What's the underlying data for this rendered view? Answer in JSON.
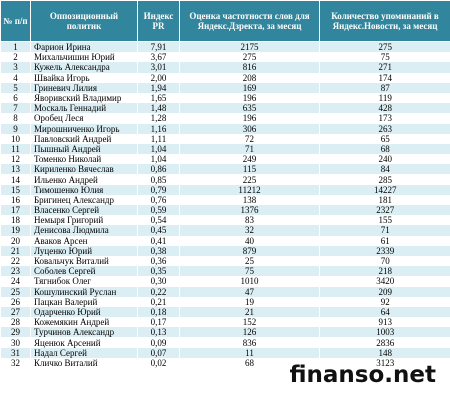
{
  "table": {
    "header": [
      "№ п/п",
      "Оппозиционный политик",
      "Индекс PR",
      "Оценка частотности слов для Яндекс.Дзректа, за месяц",
      "Количество упоминаний в Яндекс.Новости, за месяц"
    ],
    "rows": [
      [
        "1",
        "Фарион Ирина",
        "7,91",
        "2175",
        "275"
      ],
      [
        "2",
        "Михальчишин Юрий",
        "3,67",
        "275",
        "75"
      ],
      [
        "3",
        "Кужель Александра",
        "3,01",
        "816",
        "271"
      ],
      [
        "4",
        "Швайка Игорь",
        "2,00",
        "208",
        "174"
      ],
      [
        "5",
        "Гриневич Лилия",
        "1,94",
        "169",
        "87"
      ],
      [
        "6",
        "Яворивский Владимир",
        "1,65",
        "196",
        "119"
      ],
      [
        "7",
        "Москаль Геннадий",
        "1,48",
        "635",
        "428"
      ],
      [
        "8",
        "Оробец Леся",
        "1,28",
        "196",
        "173"
      ],
      [
        "9",
        "Мирошниченко Игорь",
        "1,16",
        "306",
        "263"
      ],
      [
        "10",
        "Павловский Андрей",
        "1,11",
        "72",
        "65"
      ],
      [
        "11",
        "Пышный Андрей",
        "1,04",
        "71",
        "68"
      ],
      [
        "12",
        "Томенко Николай",
        "1,04",
        "249",
        "240"
      ],
      [
        "13",
        "Кириленко Вячеслав",
        "0,86",
        "115",
        "84"
      ],
      [
        "14",
        "Ильенко Андрей",
        "0,85",
        "225",
        "285"
      ],
      [
        "15",
        "Тимошенко Юлия",
        "0,79",
        "11212",
        "14227"
      ],
      [
        "16",
        "Бригинец Александр",
        "0,76",
        "138",
        "181"
      ],
      [
        "17",
        "Власенко Сергей",
        "0,59",
        "1376",
        "2327"
      ],
      [
        "18",
        "Немыря Григорий",
        "0,54",
        "83",
        "155"
      ],
      [
        "19",
        "Денисова Людмила",
        "0,45",
        "32",
        "71"
      ],
      [
        "20",
        "Аваков Арсен",
        "0,41",
        "40",
        "61"
      ],
      [
        "21",
        "Луценко Юрий",
        "0,38",
        "879",
        "2339"
      ],
      [
        "22",
        "Ковальчук Виталий",
        "0,36",
        "25",
        "70"
      ],
      [
        "23",
        "Соболев Сергей",
        "0,35",
        "75",
        "218"
      ],
      [
        "24",
        "Тягнибок Олег",
        "0,30",
        "1010",
        "3420"
      ],
      [
        "25",
        "Кошулинский Руслан",
        "0,22",
        "47",
        "209"
      ],
      [
        "26",
        "Пацкан Валерий",
        "0,21",
        "19",
        "92"
      ],
      [
        "27",
        "Одарченко Юрий",
        "0,18",
        "21",
        "64"
      ],
      [
        "28",
        "Кожемякин Андрей",
        "0,17",
        "152",
        "913"
      ],
      [
        "29",
        "Турчинов Александр",
        "0,13",
        "126",
        "1003"
      ],
      [
        "30",
        "Яценюк Арсений",
        "0,09",
        "836",
        "2836"
      ],
      [
        "31",
        "Надал Сергей",
        "0,07",
        "11",
        "148"
      ],
      [
        "32",
        "Кличко Виталий",
        "0,02",
        "68",
        "3123"
      ]
    ]
  },
  "watermark": "finanso.net"
}
